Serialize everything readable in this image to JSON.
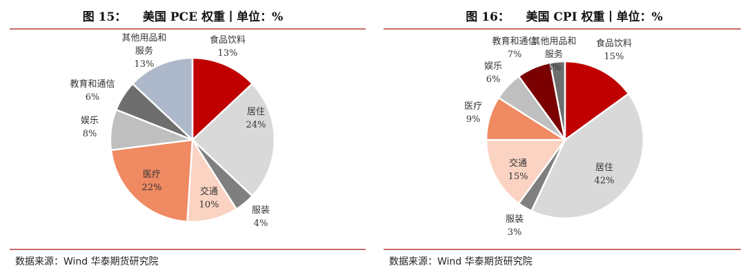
{
  "charts": [
    {
      "title": "图 15：    美国 PCE 权重丨单位：%",
      "source": "数据来源：Wind 华泰期货研究院"
    },
    {
      "title": "图 16：    美国 CPI 权重丨单位：%",
      "source": "数据来源：Wind 华泰期货研究院"
    }
  ],
  "chart_data": [
    {
      "type": "pie",
      "title": "图 15：    美国 PCE 权重丨单位：%",
      "unit": "%",
      "slices": [
        {
          "label": "食品饮料",
          "value": 13,
          "value_label": "13%",
          "color": "#c00000"
        },
        {
          "label": "居住",
          "value": 24,
          "value_label": "24%",
          "color": "#d9d9d9"
        },
        {
          "label": "服装",
          "value": 4,
          "value_label": "4%",
          "color": "#7f7f7f"
        },
        {
          "label": "交通",
          "value": 10,
          "value_label": "10%",
          "color": "#fbd3c3"
        },
        {
          "label": "医疗",
          "value": 22,
          "value_label": "22%",
          "color": "#ef8a62"
        },
        {
          "label": "娱乐",
          "value": 8,
          "value_label": "8%",
          "color": "#bfbfbf"
        },
        {
          "label": "教育和通信",
          "value": 6,
          "value_label": "6%",
          "color": "#6e6e6e"
        },
        {
          "label": "其他用品和服务",
          "label_lines": [
            "其他用品和",
            "服务"
          ],
          "value": 13,
          "value_label": "13%",
          "color": "#adb9ca"
        }
      ]
    },
    {
      "type": "pie",
      "title": "图 16：    美国 CPI 权重丨单位：%",
      "unit": "%",
      "slices": [
        {
          "label": "食品饮料",
          "value": 15,
          "value_label": "15%",
          "color": "#c00000"
        },
        {
          "label": "居住",
          "value": 42,
          "value_label": "42%",
          "color": "#d9d9d9"
        },
        {
          "label": "服装",
          "value": 3,
          "value_label": "3%",
          "color": "#7f7f7f"
        },
        {
          "label": "交通",
          "value": 15,
          "value_label": "15%",
          "color": "#fbd3c3"
        },
        {
          "label": "医疗",
          "value": 9,
          "value_label": "9%",
          "color": "#ef8a62"
        },
        {
          "label": "娱乐",
          "value": 6,
          "value_label": "6%",
          "color": "#bfbfbf"
        },
        {
          "label": "教育和通信",
          "value": 7,
          "value_label": "7%",
          "color": "#7b0000"
        },
        {
          "label": "其他用品和服务",
          "label_lines": [
            "其他用品和",
            "服务"
          ],
          "value": 3,
          "value_label": "3%",
          "color": "#6e6e6e"
        }
      ]
    }
  ]
}
